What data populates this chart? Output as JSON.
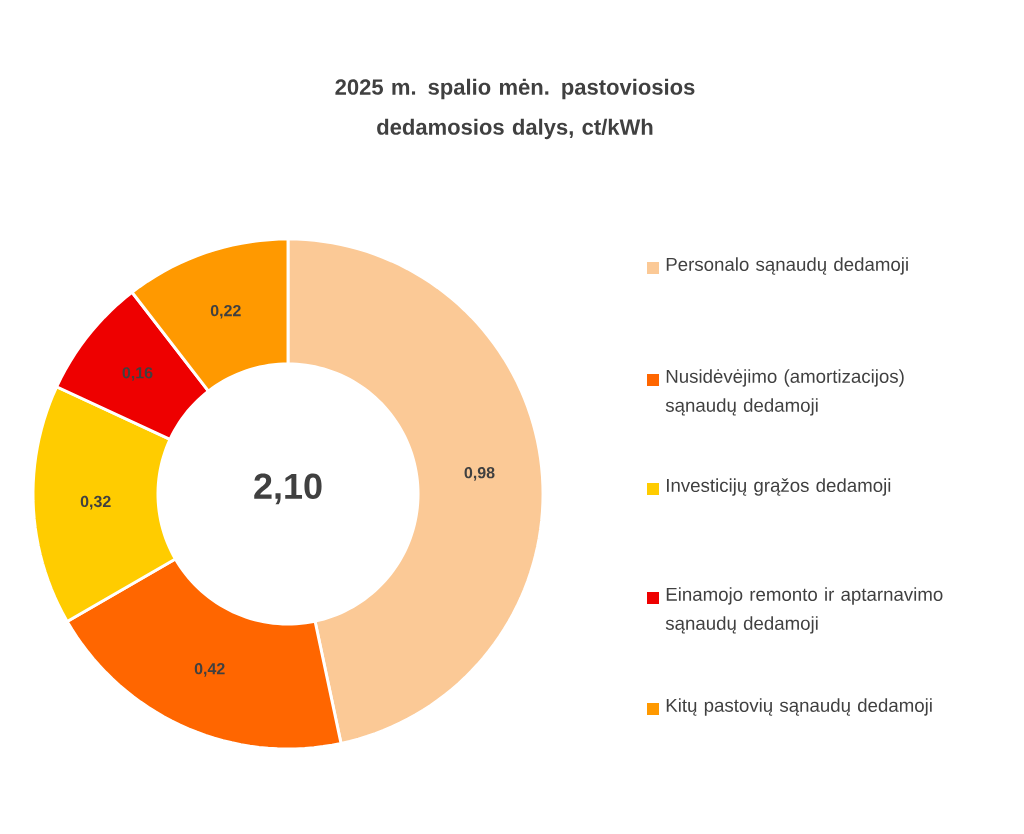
{
  "chart_data": {
    "type": "donut",
    "title": "2025 m.  spalio mėn.  pastoviosios dedamosios dalys, ct/kWh",
    "categories": [
      "Personalo sąnaudų dedamoji",
      "Nusidėvėjimo (amortizacijos) sąnaudų dedamoji",
      "Investicijų grąžos dedamoji",
      "Einamojo remonto ir aptarnavimo sąnaudų dedamoji",
      "Kitų pastovių sąnaudų dedamoji"
    ],
    "values": [
      0.98,
      0.42,
      0.32,
      0.16,
      0.22
    ],
    "colors": [
      "#fbc996",
      "#ff6600",
      "#ffcc00",
      "#ee0000",
      "#ff9900"
    ],
    "value_labels": [
      "0,98",
      "0,42",
      "0,32",
      "0,16",
      "0,22"
    ],
    "annotations": [
      "2,10"
    ],
    "legend": "right"
  }
}
